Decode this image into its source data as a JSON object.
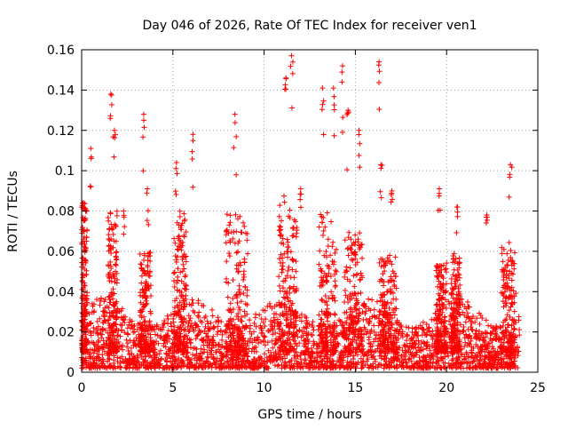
{
  "chart_data": {
    "type": "scatter",
    "title": "Day 046 of 2026, Rate Of TEC Index for receiver ven1",
    "xlabel": "GPS time / hours",
    "ylabel": "ROTI / TECUs",
    "xlim": [
      0,
      25
    ],
    "ylim": [
      0,
      0.16
    ],
    "x_ticks": [
      0,
      5,
      10,
      15,
      20,
      25
    ],
    "x_tick_labels": [
      "0",
      "5",
      "10",
      "15",
      "20",
      "25"
    ],
    "y_ticks": [
      0,
      0.02,
      0.04,
      0.06,
      0.08,
      0.1,
      0.12,
      0.14,
      0.16
    ],
    "y_tick_labels": [
      "0",
      "0.02",
      "0.04",
      "0.06",
      "0.08",
      "0.1",
      "0.12",
      "0.14",
      "0.16"
    ],
    "grid": true,
    "marker": "+",
    "series": [
      {
        "name": "ROTI",
        "color": "#ff0000",
        "peaks": [
          {
            "x": 0.1,
            "y": 0.084
          },
          {
            "x": 0.5,
            "y": 0.111
          },
          {
            "x": 1.6,
            "y": 0.138
          },
          {
            "x": 1.8,
            "y": 0.12
          },
          {
            "x": 2.3,
            "y": 0.08
          },
          {
            "x": 3.4,
            "y": 0.128
          },
          {
            "x": 3.6,
            "y": 0.091
          },
          {
            "x": 5.2,
            "y": 0.104
          },
          {
            "x": 6.1,
            "y": 0.118
          },
          {
            "x": 8.4,
            "y": 0.128
          },
          {
            "x": 11.2,
            "y": 0.146
          },
          {
            "x": 11.5,
            "y": 0.157
          },
          {
            "x": 12.0,
            "y": 0.091
          },
          {
            "x": 13.2,
            "y": 0.141
          },
          {
            "x": 13.8,
            "y": 0.141
          },
          {
            "x": 14.3,
            "y": 0.152
          },
          {
            "x": 14.6,
            "y": 0.13
          },
          {
            "x": 15.2,
            "y": 0.12
          },
          {
            "x": 16.3,
            "y": 0.154
          },
          {
            "x": 16.4,
            "y": 0.103
          },
          {
            "x": 17.0,
            "y": 0.09
          },
          {
            "x": 19.6,
            "y": 0.091
          },
          {
            "x": 20.6,
            "y": 0.082
          },
          {
            "x": 22.2,
            "y": 0.078
          },
          {
            "x": 23.5,
            "y": 0.103
          }
        ],
        "bursts": [
          {
            "center": 0.15,
            "width": 0.3,
            "peak": 0.084
          },
          {
            "center": 1.7,
            "width": 0.5,
            "peak": 0.08
          },
          {
            "center": 3.5,
            "width": 0.6,
            "peak": 0.06
          },
          {
            "center": 5.4,
            "width": 0.7,
            "peak": 0.08
          },
          {
            "center": 8.5,
            "width": 1.2,
            "peak": 0.08
          },
          {
            "center": 11.3,
            "width": 1.0,
            "peak": 0.09
          },
          {
            "center": 13.5,
            "width": 1.0,
            "peak": 0.08
          },
          {
            "center": 14.9,
            "width": 1.0,
            "peak": 0.07
          },
          {
            "center": 16.8,
            "width": 1.0,
            "peak": 0.06
          },
          {
            "center": 19.7,
            "width": 0.6,
            "peak": 0.055
          },
          {
            "center": 20.5,
            "width": 0.5,
            "peak": 0.06
          },
          {
            "center": 23.4,
            "width": 0.8,
            "peak": 0.065
          }
        ],
        "baseline_range": [
          0.002,
          0.03
        ],
        "x_range": [
          0,
          24
        ]
      }
    ]
  }
}
